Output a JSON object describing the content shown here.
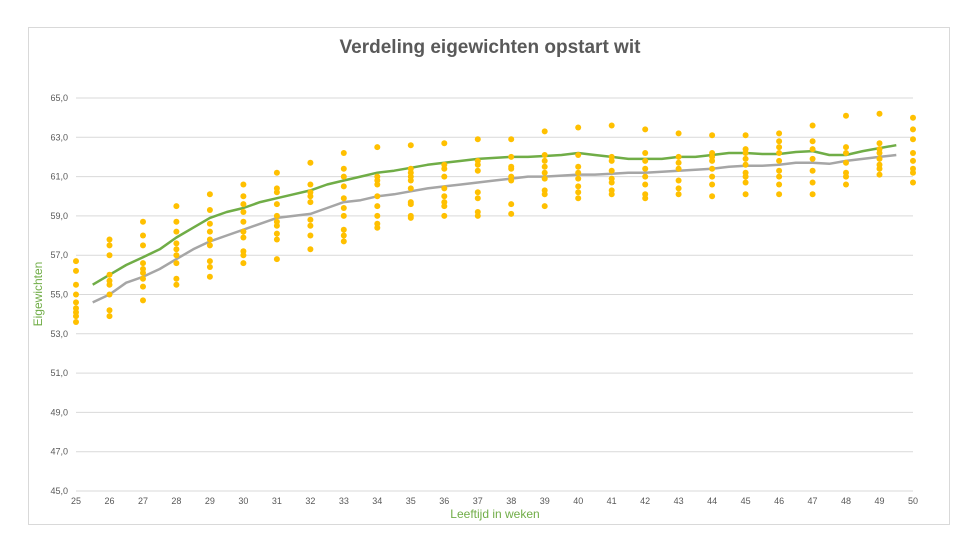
{
  "chart_data": {
    "type": "scatter",
    "title": "Verdeling eigewichten opstart wit",
    "xlabel": "Leeftijd in weken",
    "ylabel": "Eigewichten",
    "xlim": [
      25,
      50
    ],
    "ylim": [
      45,
      65
    ],
    "x_ticks": [
      "25",
      "26",
      "27",
      "28",
      "29",
      "30",
      "31",
      "32",
      "33",
      "34",
      "35",
      "36",
      "37",
      "38",
      "39",
      "40",
      "41",
      "42",
      "43",
      "44",
      "45",
      "46",
      "47",
      "48",
      "49",
      "50"
    ],
    "y_ticks": [
      "45,0",
      "47,0",
      "49,0",
      "51,0",
      "53,0",
      "55,0",
      "57,0",
      "59,0",
      "61,0",
      "63,0",
      "65,0"
    ],
    "grid": "horizontal",
    "colors": {
      "points": "#ffc000",
      "green_line": "#70ad47",
      "grey_line": "#a6a6a6",
      "grid": "#d9d9d9"
    },
    "series": [
      {
        "type": "line",
        "color": "#70ad47",
        "x": [
          25.5,
          26,
          26.5,
          27,
          27.5,
          28,
          28.5,
          29,
          29.5,
          30,
          30.5,
          31,
          31.5,
          32,
          32.5,
          33,
          33.5,
          34,
          34.5,
          35,
          35.5,
          36,
          36.5,
          37,
          37.5,
          38,
          38.5,
          39,
          39.5,
          40,
          40.5,
          41,
          41.5,
          42,
          42.5,
          43,
          43.5,
          44,
          44.5,
          45,
          45.5,
          46,
          46.5,
          47,
          47.5,
          48,
          48.5,
          49,
          49.5
        ],
        "y": [
          55.5,
          56,
          56.5,
          56.9,
          57.3,
          57.9,
          58.4,
          58.9,
          59.2,
          59.4,
          59.7,
          59.9,
          60.1,
          60.3,
          60.6,
          60.8,
          61.0,
          61.2,
          61.3,
          61.45,
          61.6,
          61.7,
          61.8,
          61.9,
          61.95,
          62.0,
          62.0,
          62.05,
          62.1,
          62.2,
          62.1,
          62.0,
          61.9,
          61.9,
          61.9,
          62.0,
          62.0,
          62.1,
          62.2,
          62.2,
          62.15,
          62.15,
          62.25,
          62.3,
          62.1,
          62.1,
          62.3,
          62.45,
          62.6
        ]
      },
      {
        "type": "line",
        "color": "#a6a6a6",
        "x": [
          25.5,
          26,
          26.5,
          27,
          27.5,
          28,
          28.5,
          29,
          29.5,
          30,
          30.5,
          31,
          31.5,
          32,
          32.5,
          33,
          33.5,
          34,
          34.5,
          35,
          35.5,
          36,
          36.5,
          37,
          37.5,
          38,
          38.5,
          39,
          39.5,
          40,
          40.5,
          41,
          41.5,
          42,
          42.5,
          43,
          43.5,
          44,
          44.5,
          45,
          45.5,
          46,
          46.5,
          47,
          47.5,
          48,
          48.5,
          49,
          49.5
        ],
        "y": [
          54.6,
          55.0,
          55.6,
          55.9,
          56.3,
          56.8,
          57.3,
          57.7,
          58.0,
          58.3,
          58.6,
          58.9,
          59.0,
          59.1,
          59.4,
          59.7,
          59.8,
          60.0,
          60.1,
          60.25,
          60.4,
          60.5,
          60.6,
          60.7,
          60.8,
          60.9,
          61.0,
          61.0,
          61.05,
          61.1,
          61.1,
          61.15,
          61.2,
          61.2,
          61.25,
          61.3,
          61.35,
          61.4,
          61.5,
          61.55,
          61.55,
          61.6,
          61.7,
          61.7,
          61.65,
          61.8,
          61.9,
          62.0,
          62.1
        ]
      },
      {
        "type": "scatter",
        "color": "#ffc000",
        "points": [
          [
            25,
            53.6
          ],
          [
            25,
            53.9
          ],
          [
            25,
            54.1
          ],
          [
            25,
            54.3
          ],
          [
            25,
            54.6
          ],
          [
            25,
            55.0
          ],
          [
            25,
            55.5
          ],
          [
            25,
            56.2
          ],
          [
            25,
            56.7
          ],
          [
            26,
            53.9
          ],
          [
            26,
            54.2
          ],
          [
            26,
            55.0
          ],
          [
            26,
            55.5
          ],
          [
            26,
            55.7
          ],
          [
            26,
            56.0
          ],
          [
            26,
            57.0
          ],
          [
            26,
            57.5
          ],
          [
            26,
            57.8
          ],
          [
            27,
            54.7
          ],
          [
            27,
            55.4
          ],
          [
            27,
            55.8
          ],
          [
            27,
            56.1
          ],
          [
            27,
            56.3
          ],
          [
            27,
            56.6
          ],
          [
            27,
            57.5
          ],
          [
            27,
            58.0
          ],
          [
            27,
            58.7
          ],
          [
            28,
            55.5
          ],
          [
            28,
            55.8
          ],
          [
            28,
            56.6
          ],
          [
            28,
            57.0
          ],
          [
            28,
            57.3
          ],
          [
            28,
            57.6
          ],
          [
            28,
            58.2
          ],
          [
            28,
            58.7
          ],
          [
            28,
            59.5
          ],
          [
            29,
            55.9
          ],
          [
            29,
            56.4
          ],
          [
            29,
            56.7
          ],
          [
            29,
            57.5
          ],
          [
            29,
            57.8
          ],
          [
            29,
            58.2
          ],
          [
            29,
            58.6
          ],
          [
            29,
            59.3
          ],
          [
            29,
            60.1
          ],
          [
            30,
            56.6
          ],
          [
            30,
            57.0
          ],
          [
            30,
            57.2
          ],
          [
            30,
            57.9
          ],
          [
            30,
            58.2
          ],
          [
            30,
            58.7
          ],
          [
            30,
            59.2
          ],
          [
            30,
            59.6
          ],
          [
            30,
            60.0
          ],
          [
            30,
            60.6
          ],
          [
            31,
            56.8
          ],
          [
            31,
            57.8
          ],
          [
            31,
            58.1
          ],
          [
            31,
            58.5
          ],
          [
            31,
            58.7
          ],
          [
            31,
            59.0
          ],
          [
            31,
            59.6
          ],
          [
            31,
            60.2
          ],
          [
            31,
            60.4
          ],
          [
            31,
            61.2
          ],
          [
            32,
            57.3
          ],
          [
            32,
            58.0
          ],
          [
            32,
            58.5
          ],
          [
            32,
            58.8
          ],
          [
            32,
            59.7
          ],
          [
            32,
            60.0
          ],
          [
            32,
            60.2
          ],
          [
            32,
            60.6
          ],
          [
            32,
            61.7
          ],
          [
            33,
            57.7
          ],
          [
            33,
            58.0
          ],
          [
            33,
            58.3
          ],
          [
            33,
            59.0
          ],
          [
            33,
            59.4
          ],
          [
            33,
            59.9
          ],
          [
            33,
            60.5
          ],
          [
            33,
            61.0
          ],
          [
            33,
            61.4
          ],
          [
            33,
            62.2
          ],
          [
            34,
            58.4
          ],
          [
            34,
            58.6
          ],
          [
            34,
            59.0
          ],
          [
            34,
            59.5
          ],
          [
            34,
            60.0
          ],
          [
            34,
            60.6
          ],
          [
            34,
            60.8
          ],
          [
            34,
            61.0
          ],
          [
            34,
            62.5
          ],
          [
            35,
            58.9
          ],
          [
            35,
            59.0
          ],
          [
            35,
            59.6
          ],
          [
            35,
            59.7
          ],
          [
            35,
            60.4
          ],
          [
            35,
            60.8
          ],
          [
            35,
            61.0
          ],
          [
            35,
            61.2
          ],
          [
            35,
            61.4
          ],
          [
            35,
            62.6
          ],
          [
            36,
            59.0
          ],
          [
            36,
            59.5
          ],
          [
            36,
            59.7
          ],
          [
            36,
            60.0
          ],
          [
            36,
            60.4
          ],
          [
            36,
            61.0
          ],
          [
            36,
            61.4
          ],
          [
            36,
            61.6
          ],
          [
            36,
            62.7
          ],
          [
            37,
            59.0
          ],
          [
            37,
            59.2
          ],
          [
            37,
            59.9
          ],
          [
            37,
            60.2
          ],
          [
            37,
            61.3
          ],
          [
            37,
            61.6
          ],
          [
            37,
            61.8
          ],
          [
            37,
            62.9
          ],
          [
            38,
            59.1
          ],
          [
            38,
            59.6
          ],
          [
            38,
            60.8
          ],
          [
            38,
            61.0
          ],
          [
            38,
            61.4
          ],
          [
            38,
            61.5
          ],
          [
            38,
            62.0
          ],
          [
            38,
            62.9
          ],
          [
            39,
            59.5
          ],
          [
            39,
            60.1
          ],
          [
            39,
            60.3
          ],
          [
            39,
            60.9
          ],
          [
            39,
            61.2
          ],
          [
            39,
            61.5
          ],
          [
            39,
            61.8
          ],
          [
            39,
            62.1
          ],
          [
            39,
            63.3
          ],
          [
            40,
            59.9
          ],
          [
            40,
            60.2
          ],
          [
            40,
            60.5
          ],
          [
            40,
            60.9
          ],
          [
            40,
            61.2
          ],
          [
            40,
            61.5
          ],
          [
            40,
            62.1
          ],
          [
            40,
            63.5
          ],
          [
            41,
            60.1
          ],
          [
            41,
            60.3
          ],
          [
            41,
            60.7
          ],
          [
            41,
            60.9
          ],
          [
            41,
            61.3
          ],
          [
            41,
            61.8
          ],
          [
            41,
            62.0
          ],
          [
            41,
            63.6
          ],
          [
            42,
            59.9
          ],
          [
            42,
            60.1
          ],
          [
            42,
            60.6
          ],
          [
            42,
            61.0
          ],
          [
            42,
            61.4
          ],
          [
            42,
            61.8
          ],
          [
            42,
            62.2
          ],
          [
            42,
            63.4
          ],
          [
            43,
            60.1
          ],
          [
            43,
            60.4
          ],
          [
            43,
            60.8
          ],
          [
            43,
            61.4
          ],
          [
            43,
            61.7
          ],
          [
            43,
            62.0
          ],
          [
            43,
            63.2
          ],
          [
            44,
            60.0
          ],
          [
            44,
            60.6
          ],
          [
            44,
            61.0
          ],
          [
            44,
            61.4
          ],
          [
            44,
            61.8
          ],
          [
            44,
            62.0
          ],
          [
            44,
            62.2
          ],
          [
            44,
            63.1
          ],
          [
            45,
            60.1
          ],
          [
            45,
            60.7
          ],
          [
            45,
            61.0
          ],
          [
            45,
            61.2
          ],
          [
            45,
            61.6
          ],
          [
            45,
            61.9
          ],
          [
            45,
            62.2
          ],
          [
            45,
            62.4
          ],
          [
            45,
            63.1
          ],
          [
            46,
            60.1
          ],
          [
            46,
            60.6
          ],
          [
            46,
            61.0
          ],
          [
            46,
            61.3
          ],
          [
            46,
            61.8
          ],
          [
            46,
            62.2
          ],
          [
            46,
            62.5
          ],
          [
            46,
            62.8
          ],
          [
            46,
            63.2
          ],
          [
            47,
            60.1
          ],
          [
            47,
            60.7
          ],
          [
            47,
            61.3
          ],
          [
            47,
            61.9
          ],
          [
            47,
            62.4
          ],
          [
            47,
            62.8
          ],
          [
            47,
            63.6
          ],
          [
            48,
            60.6
          ],
          [
            48,
            61.0
          ],
          [
            48,
            61.2
          ],
          [
            48,
            61.7
          ],
          [
            48,
            62.2
          ],
          [
            48,
            62.5
          ],
          [
            48,
            64.1
          ],
          [
            49,
            61.1
          ],
          [
            49,
            61.4
          ],
          [
            49,
            61.6
          ],
          [
            49,
            61.9
          ],
          [
            49,
            62.2
          ],
          [
            49,
            62.4
          ],
          [
            49,
            62.7
          ],
          [
            49,
            64.2
          ],
          [
            50,
            60.7
          ],
          [
            50,
            61.2
          ],
          [
            50,
            61.4
          ],
          [
            50,
            61.8
          ],
          [
            50,
            62.2
          ],
          [
            50,
            62.9
          ],
          [
            50,
            63.4
          ],
          [
            50,
            64.0
          ]
        ]
      }
    ]
  }
}
